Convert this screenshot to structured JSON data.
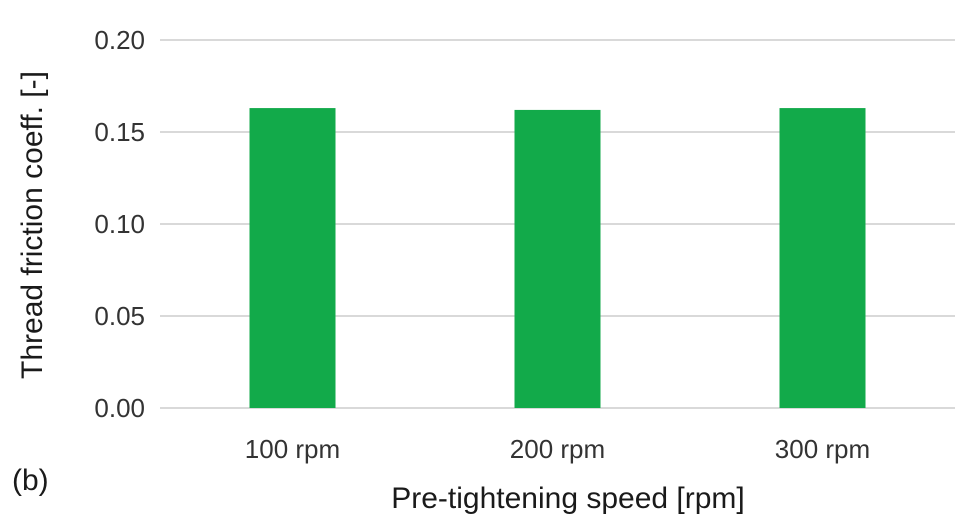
{
  "panel_label": "(b)",
  "chart_data": {
    "type": "bar",
    "categories": [
      "100 rpm",
      "200 rpm",
      "300 rpm"
    ],
    "values": [
      0.163,
      0.162,
      0.163
    ],
    "xlabel": "Pre-tightening speed [rpm]",
    "ylabel": "Thread friction coeff. [-]",
    "ylim": [
      0,
      0.2
    ],
    "yticks": [
      "0.00",
      "0.05",
      "0.10",
      "0.15",
      "0.20"
    ],
    "grid": true,
    "legend": "none",
    "colors": {
      "bar": "#12aa4a",
      "grid": "#d9d9d9"
    }
  }
}
